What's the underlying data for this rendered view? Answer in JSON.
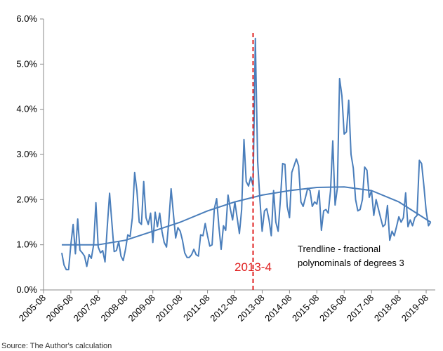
{
  "chart_data": {
    "type": "line",
    "source": "Source: The Author's calculation",
    "ylim": [
      0,
      6
    ],
    "yticks": [
      {
        "value": 0,
        "label": "0.0%"
      },
      {
        "value": 1,
        "label": "1.0%"
      },
      {
        "value": 2,
        "label": "2.0%"
      },
      {
        "value": 3,
        "label": "3.0%"
      },
      {
        "value": 4,
        "label": "4.0%"
      },
      {
        "value": 5,
        "label": "5.0%"
      },
      {
        "value": 6,
        "label": "6.0%"
      }
    ],
    "xlim": [
      "2005-08",
      "2019-12"
    ],
    "xticks": [
      "2005-08",
      "2006-08",
      "2007-08",
      "2008-08",
      "2009-08",
      "2010-08",
      "2011-08",
      "2012-08",
      "2013-08",
      "2014-08",
      "2015-08",
      "2016-08",
      "2017-08",
      "2018-08",
      "2019-08"
    ],
    "series": [
      {
        "color": "#4a7ebb",
        "x": [
          "2006-04",
          "2006-05",
          "2006-06",
          "2006-07",
          "2006-08",
          "2006-09",
          "2006-10",
          "2006-11",
          "2006-12",
          "2007-01",
          "2007-02",
          "2007-03",
          "2007-04",
          "2007-05",
          "2007-06",
          "2007-07",
          "2007-08",
          "2007-09",
          "2007-10",
          "2007-11",
          "2007-12",
          "2008-01",
          "2008-02",
          "2008-03",
          "2008-04",
          "2008-05",
          "2008-06",
          "2008-07",
          "2008-08",
          "2008-09",
          "2008-10",
          "2008-11",
          "2008-12",
          "2009-01",
          "2009-02",
          "2009-03",
          "2009-04",
          "2009-05",
          "2009-06",
          "2009-07",
          "2009-08",
          "2009-09",
          "2009-10",
          "2009-11",
          "2009-12",
          "2010-01",
          "2010-02",
          "2010-03",
          "2010-04",
          "2010-05",
          "2010-06",
          "2010-07",
          "2010-08",
          "2010-09",
          "2010-10",
          "2010-11",
          "2010-12",
          "2011-01",
          "2011-02",
          "2011-03",
          "2011-04",
          "2011-05",
          "2011-06",
          "2011-07",
          "2011-08",
          "2011-09",
          "2011-10",
          "2011-11",
          "2011-12",
          "2012-01",
          "2012-02",
          "2012-03",
          "2012-04",
          "2012-05",
          "2012-06",
          "2012-07",
          "2012-08",
          "2012-09",
          "2012-10",
          "2012-11",
          "2012-12",
          "2013-01",
          "2013-02",
          "2013-03",
          "2013-04",
          "2013-05",
          "2013-06",
          "2013-07",
          "2013-08",
          "2013-09",
          "2013-10",
          "2013-11",
          "2013-12",
          "2014-01",
          "2014-02",
          "2014-03",
          "2014-04",
          "2014-05",
          "2014-06",
          "2014-07",
          "2014-08",
          "2014-09",
          "2014-10",
          "2014-11",
          "2014-12",
          "2015-01",
          "2015-02",
          "2015-03",
          "2015-04",
          "2015-05",
          "2015-06",
          "2015-07",
          "2015-08",
          "2015-09",
          "2015-10",
          "2015-11",
          "2015-12",
          "2016-01",
          "2016-02",
          "2016-03",
          "2016-04",
          "2016-05",
          "2016-06",
          "2016-07",
          "2016-08",
          "2016-09",
          "2016-10",
          "2016-11",
          "2016-12",
          "2017-01",
          "2017-02",
          "2017-03",
          "2017-04",
          "2017-05",
          "2017-06",
          "2017-07",
          "2017-08",
          "2017-09",
          "2017-10",
          "2017-11",
          "2017-12",
          "2018-01",
          "2018-02",
          "2018-03",
          "2018-04",
          "2018-05",
          "2018-06",
          "2018-07",
          "2018-08",
          "2018-09",
          "2018-10",
          "2018-11",
          "2018-12",
          "2019-01",
          "2019-02",
          "2019-03",
          "2019-04",
          "2019-05",
          "2019-06",
          "2019-07",
          "2019-08",
          "2019-09",
          "2019-10"
        ],
        "values": [
          0.82,
          0.55,
          0.45,
          0.45,
          1.0,
          1.45,
          0.8,
          1.57,
          0.88,
          0.82,
          0.75,
          0.52,
          0.78,
          0.7,
          1.0,
          1.93,
          0.95,
          0.82,
          0.87,
          0.62,
          1.4,
          2.14,
          1.5,
          0.85,
          0.87,
          1.07,
          0.75,
          0.65,
          0.9,
          1.22,
          1.18,
          1.6,
          2.6,
          2.2,
          1.5,
          1.45,
          2.4,
          1.6,
          1.45,
          1.7,
          1.05,
          1.72,
          1.4,
          1.7,
          1.3,
          1.05,
          0.95,
          1.5,
          2.24,
          1.7,
          1.15,
          1.38,
          1.3,
          1.1,
          0.82,
          0.72,
          0.72,
          0.78,
          0.9,
          0.78,
          0.75,
          1.22,
          1.2,
          1.47,
          1.2,
          0.97,
          1.0,
          1.8,
          2.02,
          1.4,
          0.9,
          1.42,
          1.32,
          2.1,
          1.8,
          1.55,
          1.95,
          1.6,
          1.25,
          1.78,
          3.33,
          2.4,
          2.3,
          2.5,
          2.3,
          5.57,
          2.85,
          2.0,
          1.3,
          1.75,
          1.8,
          1.55,
          1.2,
          2.2,
          1.5,
          1.3,
          2.0,
          2.8,
          2.78,
          1.85,
          1.6,
          2.6,
          2.75,
          2.9,
          2.75,
          1.95,
          1.85,
          2.05,
          2.25,
          2.2,
          1.85,
          1.95,
          1.9,
          2.2,
          1.32,
          1.75,
          1.78,
          1.7,
          2.2,
          3.3,
          1.88,
          2.25,
          4.68,
          4.3,
          3.45,
          3.5,
          4.2,
          3.0,
          2.7,
          2.0,
          1.75,
          1.78,
          2.0,
          2.72,
          2.65,
          2.05,
          2.2,
          1.65,
          2.0,
          1.8,
          1.6,
          1.4,
          1.45,
          1.87,
          1.1,
          1.3,
          1.2,
          1.4,
          1.62,
          1.5,
          1.6,
          2.15,
          1.4,
          1.55,
          1.42,
          1.6,
          1.65,
          2.87,
          2.8,
          2.3,
          1.75,
          1.42,
          1.5
        ]
      },
      {
        "color": "#4a7ebb",
        "x": [
          "2006-04",
          "2007-08",
          "2008-08",
          "2009-08",
          "2010-08",
          "2011-08",
          "2012-08",
          "2013-08",
          "2014-08",
          "2015-08",
          "2016-08",
          "2017-08",
          "2018-08",
          "2019-10"
        ],
        "values": [
          1.0,
          1.0,
          1.1,
          1.3,
          1.5,
          1.75,
          1.95,
          2.1,
          2.2,
          2.27,
          2.28,
          2.2,
          1.95,
          1.5
        ]
      }
    ],
    "marker": {
      "text": "2013-4",
      "x": "2013-04",
      "color": "#e02020"
    },
    "trend_note": [
      "Trendline - fractional",
      "polynominals of degrees 3"
    ]
  }
}
